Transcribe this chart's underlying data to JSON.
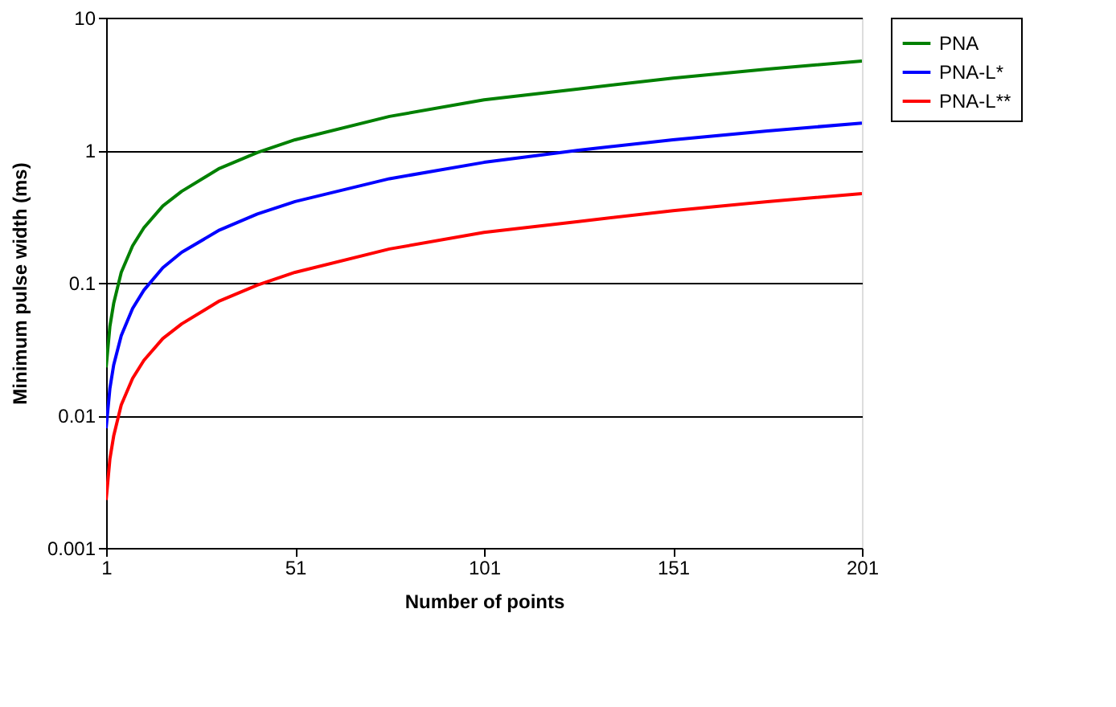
{
  "chart_data": {
    "type": "line",
    "xlabel": "Number of points",
    "ylabel": "Minimum pulse width (ms)",
    "x": [
      1,
      2,
      3,
      5,
      8,
      11,
      16,
      21,
      31,
      41,
      51,
      76,
      101,
      126,
      151,
      176,
      201
    ],
    "series": [
      {
        "name": "PNA",
        "color": "#008000",
        "values": [
          0.023,
          0.047,
          0.07,
          0.12,
          0.19,
          0.26,
          0.38,
          0.49,
          0.73,
          0.96,
          1.2,
          1.8,
          2.4,
          2.9,
          3.5,
          4.1,
          4.7
        ]
      },
      {
        "name": "PNA-L*",
        "color": "#0000ff",
        "values": [
          0.008,
          0.016,
          0.024,
          0.04,
          0.064,
          0.088,
          0.13,
          0.17,
          0.25,
          0.33,
          0.41,
          0.61,
          0.81,
          1.0,
          1.2,
          1.4,
          1.6
        ]
      },
      {
        "name": "PNA-L**",
        "color": "#ff0000",
        "values": [
          0.0023,
          0.0047,
          0.007,
          0.012,
          0.019,
          0.026,
          0.038,
          0.049,
          0.073,
          0.096,
          0.12,
          0.18,
          0.24,
          0.29,
          0.35,
          0.41,
          0.47
        ]
      }
    ],
    "xlim": [
      1,
      201
    ],
    "xticks": [
      1,
      51,
      101,
      151,
      201
    ],
    "ylim": [
      0.001,
      10
    ],
    "yticks": [
      0.001,
      0.01,
      0.1,
      1,
      10
    ],
    "log": "y",
    "grid": "y",
    "legend": "right",
    "marker": "none",
    "line_style": "solid"
  }
}
